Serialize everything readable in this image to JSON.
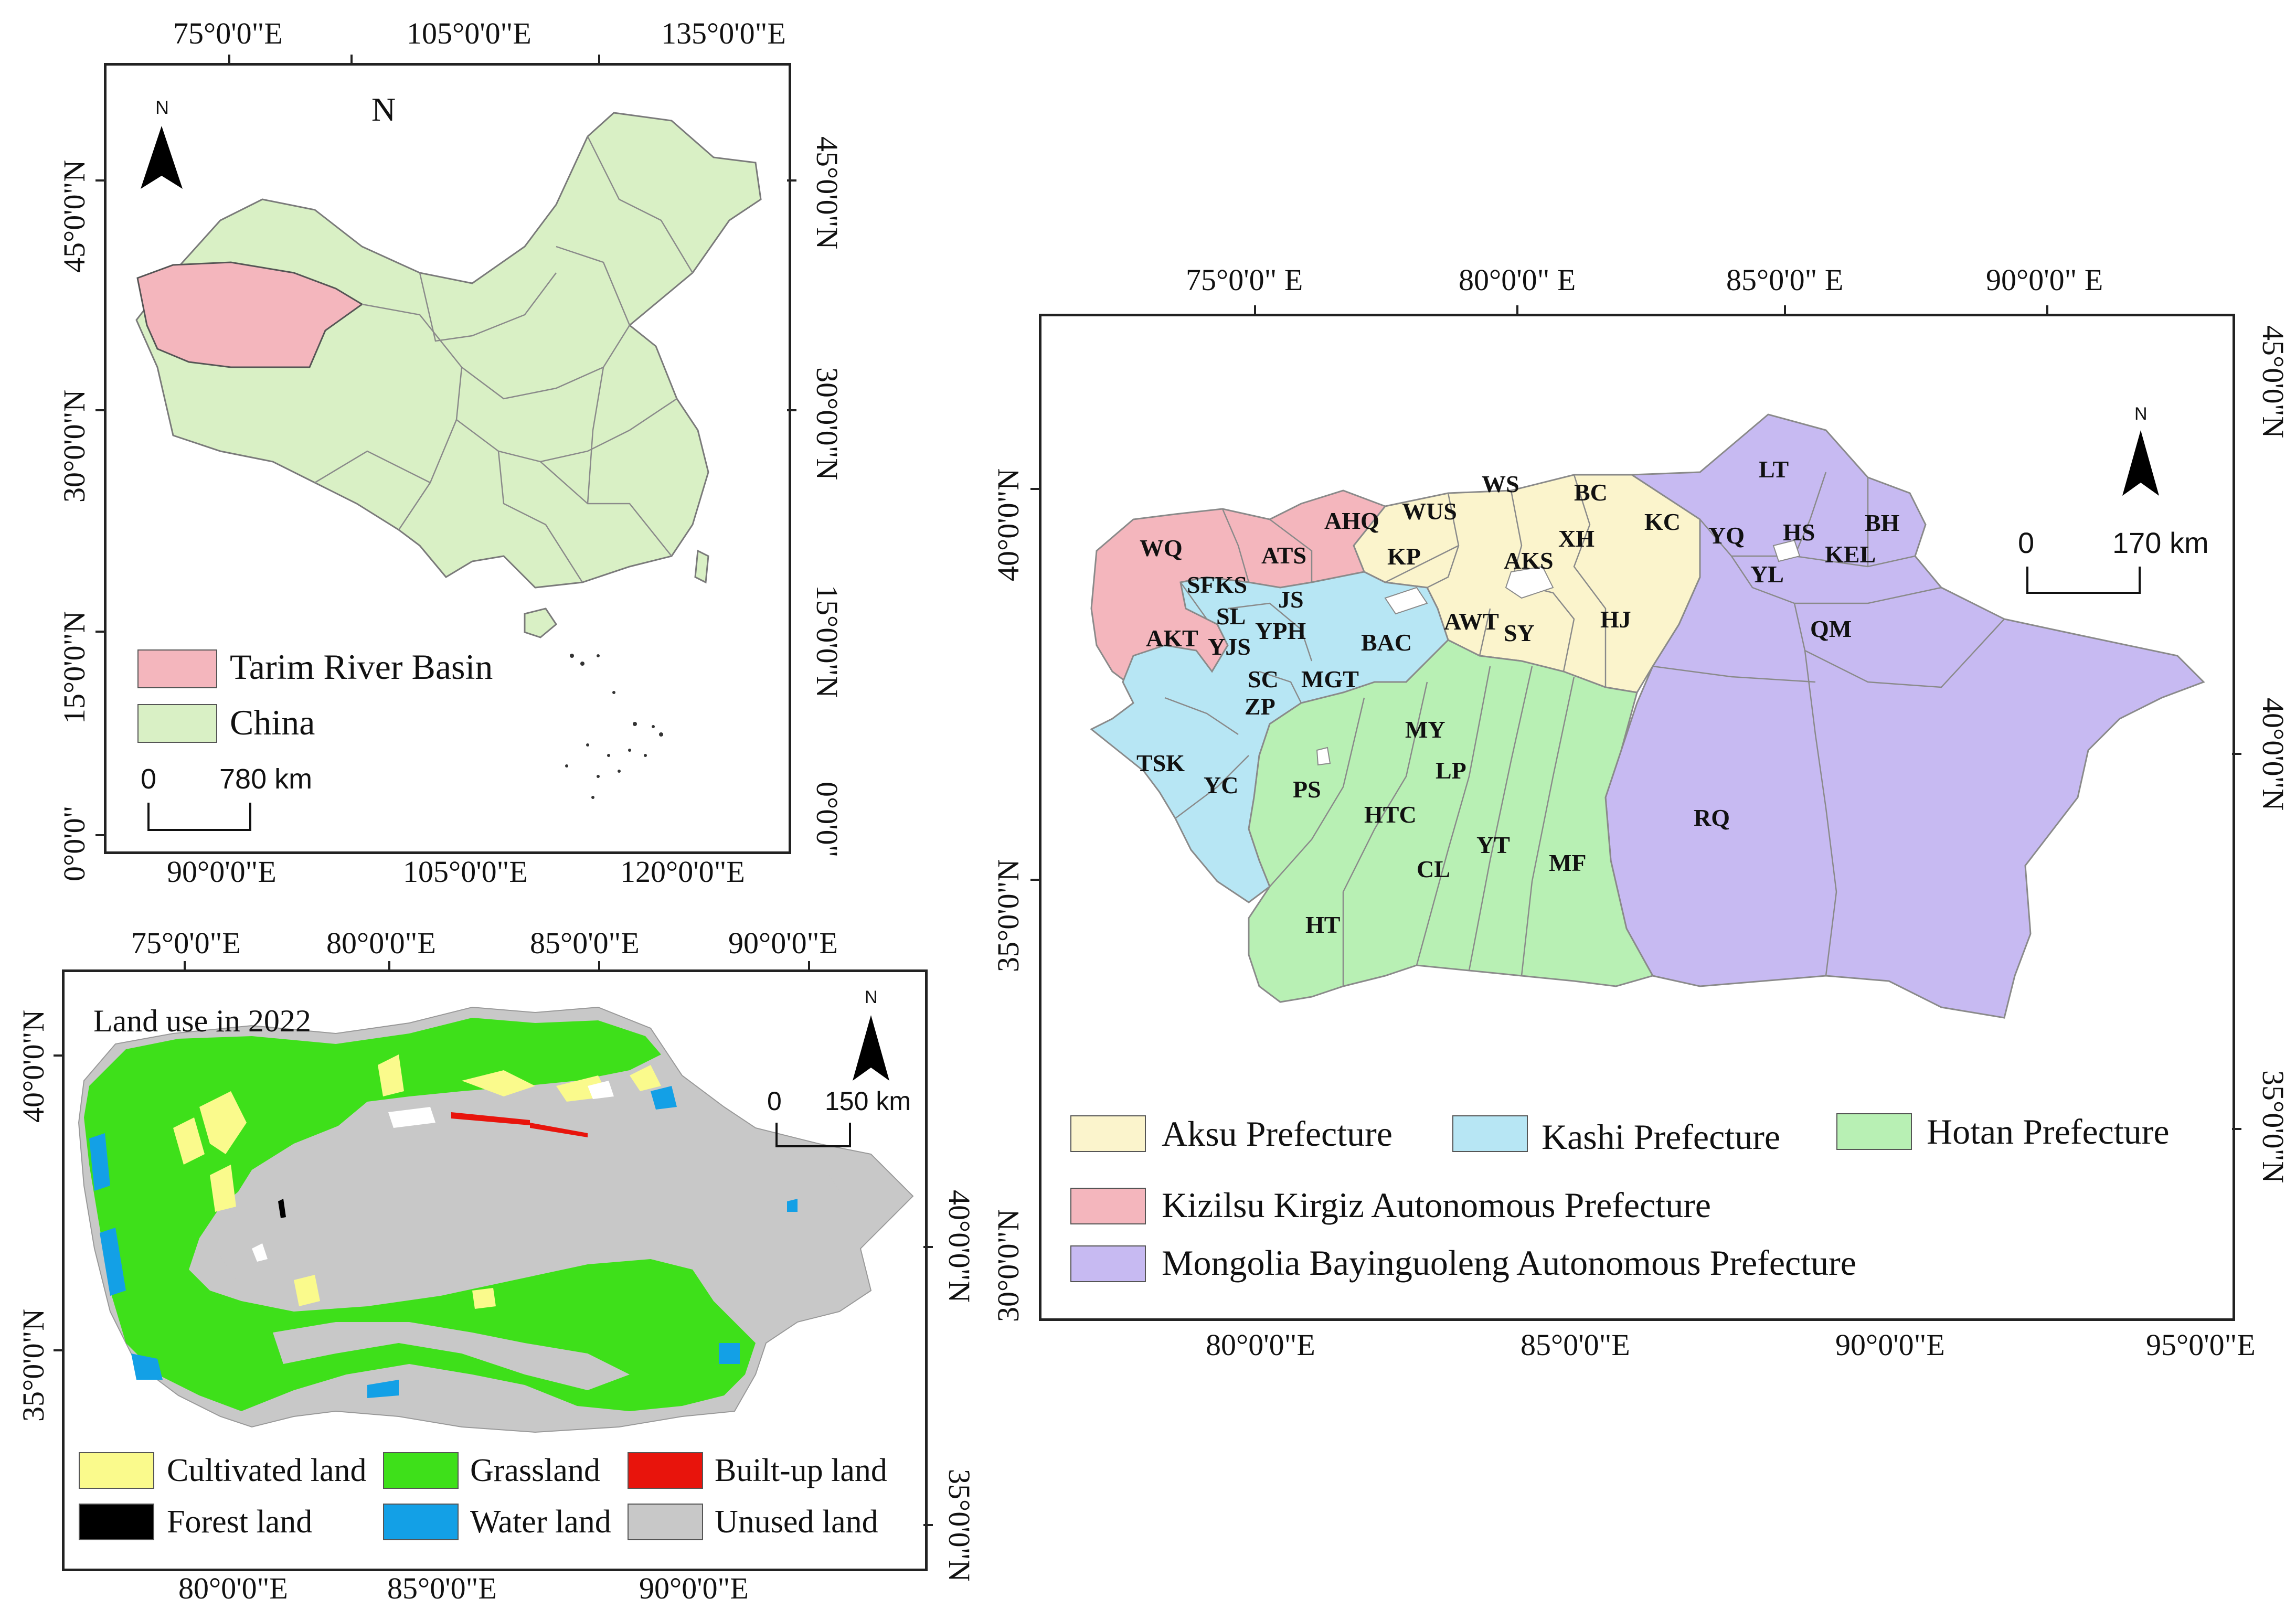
{
  "china_map": {
    "top_lon_labels": [
      "75°0'0\"E",
      "105°0'0\"E",
      "135°0'0\"E"
    ],
    "bottom_lon_labels": [
      "90°0'0\"E",
      "105°0'0\"E",
      "120°0'0\"E"
    ],
    "left_lat_labels": [
      "45°0'0\"N",
      "30°0'0\"N",
      "15°0'0\"N",
      "0°0'0\""
    ],
    "right_lat_labels": [
      "45°0'0\"N",
      "30°0'0\"N",
      "15°0'0\"N",
      "0°0'0\""
    ],
    "north_letter": "N",
    "north_label_large": "N",
    "legend": [
      {
        "label": "Tarim River Basin",
        "color": "#f4b6bd"
      },
      {
        "label": "China",
        "color": "#d9f0c5"
      }
    ],
    "scale": {
      "start": "0",
      "end": "780 km"
    }
  },
  "landuse_map": {
    "title": "Land use in 2022",
    "top_lon_labels": [
      "75°0'0\"E",
      "80°0'0\"E",
      "85°0'0\"E",
      "90°0'0\"E"
    ],
    "bottom_lon_labels": [
      "80°0'0\"E",
      "85°0'0\"E",
      "90°0'0\"E"
    ],
    "left_lat_labels": [
      "40°0'0\"N",
      "35°0'0\"N"
    ],
    "right_lat_labels": [
      "40°0'0\"N",
      "35°0'0\"N"
    ],
    "north_letter": "N",
    "scale": {
      "start": "0",
      "end": "150 km"
    },
    "legend": [
      {
        "label": "Cultivated land",
        "color": "#fafa8c"
      },
      {
        "label": "Grassland",
        "color": "#3ee01a"
      },
      {
        "label": "Built-up land",
        "color": "#e8140c"
      },
      {
        "label": "Forest land",
        "color": "#000000"
      },
      {
        "label": "Water land",
        "color": "#13a0e6"
      },
      {
        "label": "Unused land",
        "color": "#c8c8c8"
      }
    ]
  },
  "prefecture_map": {
    "top_lon_labels": [
      "75°0'0\" E",
      "80°0'0\" E",
      "85°0'0\" E",
      "90°0'0\" E"
    ],
    "bottom_lon_labels": [
      "80°0'0\"E",
      "85°0'0\"E",
      "90°0'0\"E",
      "95°0'0\"E"
    ],
    "left_lat_labels": [
      "40°0'0\"N",
      "35°0'0\"N",
      "30°0'0\"N"
    ],
    "right_lat_labels": [
      "45°0'0\"N",
      "40°0'0\"N",
      "35°0'0\"N"
    ],
    "north_letter": "N",
    "scale": {
      "start": "0",
      "end": "170 km"
    },
    "counties": [
      "WQ",
      "AHQ",
      "ATS",
      "SFKS",
      "SL",
      "JS",
      "AKT",
      "YJS",
      "YPH",
      "BAC",
      "SC",
      "MGT",
      "ZP",
      "TSK",
      "YC",
      "PS",
      "HTC",
      "MY",
      "LP",
      "YT",
      "CL",
      "MF",
      "HT",
      "WUS",
      "WS",
      "BC",
      "KC",
      "KP",
      "XH",
      "AKS",
      "AWT",
      "SY",
      "HJ",
      "LT",
      "YQ",
      "HS",
      "BH",
      "KEL",
      "YL",
      "QM",
      "RQ"
    ],
    "legend": [
      {
        "label": "Aksu Prefecture",
        "color": "#fbf4cc"
      },
      {
        "label": "Kashi Prefecture",
        "color": "#b7e6f4"
      },
      {
        "label": "Hotan Prefecture",
        "color": "#b8f0b4"
      },
      {
        "label": "Kizilsu Kirgiz Autonomous Prefecture",
        "color": "#f4b6bd"
      },
      {
        "label": "Mongolia Bayinguoleng Autonomous Prefecture",
        "color": "#c7baf2"
      }
    ]
  }
}
